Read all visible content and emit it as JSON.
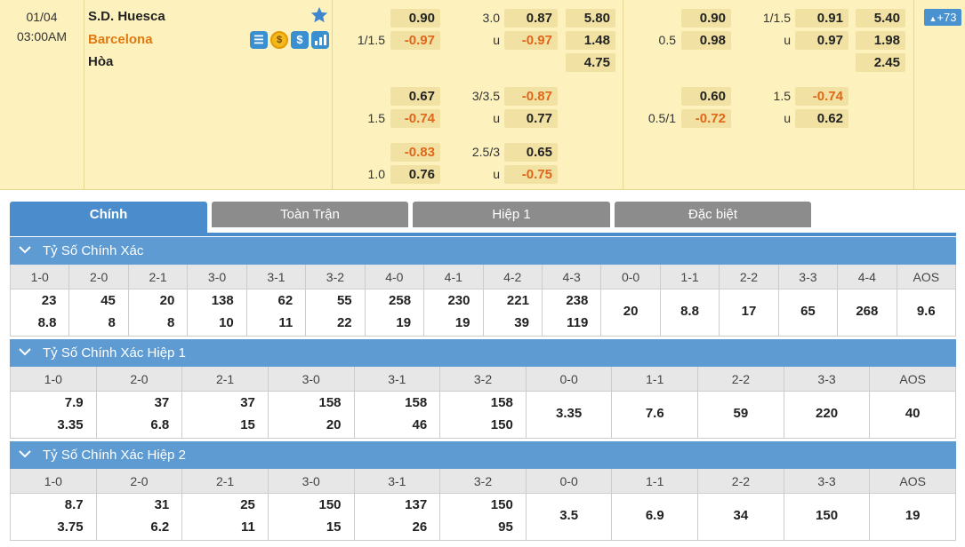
{
  "match": {
    "date": "01/04",
    "time": "03:00AM",
    "home_team": "S.D. Huesca",
    "away_team": "Barcelona",
    "draw_label": "Hòa",
    "more_count": "+73",
    "icons": [
      "S",
      "$",
      "$",
      "chart"
    ],
    "full_time": {
      "handicap": [
        {
          "line": "",
          "home": "0.90",
          "away_line": "1/1.5",
          "away": "-0.97"
        },
        {
          "line": "",
          "home": "0.67",
          "away_line": "1.5",
          "away": "-0.74"
        },
        {
          "line": "",
          "home": "-0.83",
          "away_line": "1.0",
          "away": "0.76"
        }
      ],
      "over_under": [
        {
          "line": "3.0",
          "over": "0.87",
          "u": "u",
          "under": "-0.97"
        },
        {
          "line": "3/3.5",
          "over": "-0.87",
          "u": "u",
          "under": "0.77"
        },
        {
          "line": "2.5/3",
          "over": "0.65",
          "u": "u",
          "under": "-0.75"
        }
      ],
      "one_x_two": [
        "5.80",
        "1.48",
        "4.75"
      ]
    },
    "first_half": {
      "handicap": [
        {
          "home": "0.90",
          "away_line": "0.5",
          "away": "0.98"
        },
        {
          "home": "0.60",
          "away_line": "0.5/1",
          "away": "-0.72"
        }
      ],
      "over_under": [
        {
          "line": "1/1.5",
          "over": "0.91",
          "u": "u",
          "under": "0.97"
        },
        {
          "line": "1.5",
          "over": "-0.74",
          "u": "u",
          "under": "0.62"
        }
      ],
      "one_x_two": [
        "5.40",
        "1.98",
        "2.45"
      ]
    }
  },
  "tabs": [
    "Chính",
    "Toàn Trận",
    "Hiệp 1",
    "Đặc biệt"
  ],
  "sections": [
    {
      "title": "Tỷ Số Chính Xác",
      "headers": [
        "1-0",
        "2-0",
        "2-1",
        "3-0",
        "3-1",
        "3-2",
        "4-0",
        "4-1",
        "4-2",
        "4-3",
        "0-0",
        "1-1",
        "2-2",
        "3-3",
        "4-4",
        "AOS"
      ],
      "values": [
        [
          "23",
          "8.8"
        ],
        [
          "45",
          "8"
        ],
        [
          "20",
          "8"
        ],
        [
          "138",
          "10"
        ],
        [
          "62",
          "11"
        ],
        [
          "55",
          "22"
        ],
        [
          "258",
          "19"
        ],
        [
          "230",
          "19"
        ],
        [
          "221",
          "39"
        ],
        [
          "238",
          "119"
        ],
        [
          "20"
        ],
        [
          "8.8"
        ],
        [
          "17"
        ],
        [
          "65"
        ],
        [
          "268"
        ],
        [
          "9.6"
        ]
      ]
    },
    {
      "title": "Tỷ Số Chính Xác Hiệp 1",
      "headers": [
        "1-0",
        "2-0",
        "2-1",
        "3-0",
        "3-1",
        "3-2",
        "0-0",
        "1-1",
        "2-2",
        "3-3",
        "AOS"
      ],
      "values": [
        [
          "7.9",
          "3.35"
        ],
        [
          "37",
          "6.8"
        ],
        [
          "37",
          "15"
        ],
        [
          "158",
          "20"
        ],
        [
          "158",
          "46"
        ],
        [
          "158",
          "150"
        ],
        [
          "3.35"
        ],
        [
          "7.6"
        ],
        [
          "59"
        ],
        [
          "220"
        ],
        [
          "40"
        ]
      ]
    },
    {
      "title": "Tỷ Số Chính Xác Hiệp 2",
      "headers": [
        "1-0",
        "2-0",
        "2-1",
        "3-0",
        "3-1",
        "3-2",
        "0-0",
        "1-1",
        "2-2",
        "3-3",
        "AOS"
      ],
      "values": [
        [
          "8.7",
          "3.75"
        ],
        [
          "31",
          "6.2"
        ],
        [
          "25",
          "11"
        ],
        [
          "150",
          "15"
        ],
        [
          "137",
          "26"
        ],
        [
          "150",
          "95"
        ],
        [
          "3.5"
        ],
        [
          "6.9"
        ],
        [
          "34"
        ],
        [
          "150"
        ],
        [
          "19"
        ]
      ]
    }
  ]
}
